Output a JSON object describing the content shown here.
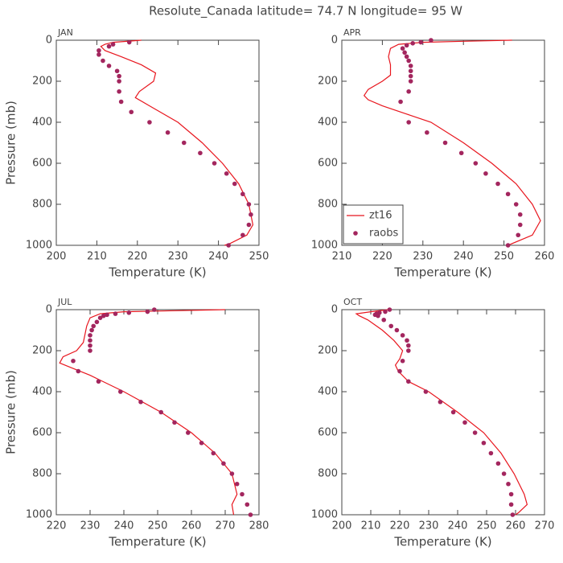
{
  "title": "Resolute_Canada  latitude= 74.7 N longitude= 95 W",
  "chart_data": [
    {
      "type": "line",
      "title": "JAN",
      "xlabel": "Temperature (K)",
      "ylabel": "Pressure (mb)",
      "xlim": [
        200,
        250
      ],
      "xticks": [
        200,
        210,
        220,
        230,
        240,
        250
      ],
      "ylim": [
        1000,
        0
      ],
      "yticks": [
        0,
        200,
        400,
        600,
        800,
        1000
      ],
      "series": [
        {
          "type": "line",
          "color": "#e8161e",
          "x": [
            221,
            214,
            212,
            211,
            212,
            216,
            221,
            224.5,
            224,
            220.5,
            219.5,
            223,
            230,
            236,
            241,
            245,
            247.5,
            248.5,
            247,
            243,
            241.5
          ],
          "y": [
            0,
            10,
            20,
            30,
            50,
            80,
            120,
            160,
            200,
            250,
            280,
            320,
            400,
            500,
            600,
            700,
            800,
            900,
            950,
            990,
            1000
          ]
        },
        {
          "type": "scatter",
          "color": "#a3265e",
          "x": [
            218,
            214,
            213,
            210.5,
            210.5,
            211.5,
            213,
            215,
            215.5,
            215.5,
            215.5,
            216,
            218.5,
            223,
            227.5,
            231.5,
            235.5,
            239,
            242,
            244,
            246,
            247.5,
            248,
            247.5,
            246,
            242.5
          ],
          "y": [
            10,
            20,
            30,
            50,
            70,
            100,
            125,
            150,
            175,
            200,
            250,
            300,
            350,
            400,
            450,
            500,
            550,
            600,
            650,
            700,
            750,
            800,
            850,
            900,
            950,
            1000
          ]
        }
      ]
    },
    {
      "type": "line",
      "title": "APR",
      "xlabel": "Temperature (K)",
      "xlim": [
        210,
        260
      ],
      "xticks": [
        210,
        220,
        230,
        240,
        250,
        260
      ],
      "ylim": [
        1000,
        0
      ],
      "yticks": [
        0,
        200,
        400,
        600,
        800,
        1000
      ],
      "legend": "lower left",
      "series": [
        {
          "type": "line",
          "name": "zt16",
          "color": "#e8161e",
          "x": [
            252,
            240,
            230,
            224,
            222,
            221.5,
            222,
            222,
            220,
            216.5,
            215.5,
            216.5,
            220,
            226,
            232,
            240,
            247,
            253,
            257,
            259,
            257,
            251
          ],
          "y": [
            0,
            5,
            10,
            20,
            40,
            80,
            120,
            170,
            200,
            240,
            270,
            290,
            320,
            360,
            400,
            500,
            600,
            700,
            800,
            880,
            950,
            1000
          ]
        },
        {
          "type": "scatter",
          "name": "raobs",
          "color": "#a3265e",
          "x": [
            232,
            229.5,
            227.5,
            226,
            225,
            225.5,
            226,
            226.5,
            227,
            227,
            227,
            227,
            226.5,
            224.5,
            226.5,
            231,
            235.5,
            239.5,
            243,
            245.5,
            248.5,
            251,
            253,
            254,
            254,
            253.5,
            251
          ],
          "y": [
            0,
            10,
            15,
            25,
            40,
            60,
            80,
            100,
            125,
            150,
            175,
            200,
            250,
            300,
            400,
            450,
            500,
            550,
            600,
            650,
            700,
            750,
            800,
            850,
            900,
            950,
            1000
          ]
        }
      ]
    },
    {
      "type": "line",
      "title": "JUL",
      "xlabel": "Temperature (K)",
      "ylabel": "Pressure (mb)",
      "xlim": [
        220,
        280
      ],
      "xticks": [
        220,
        230,
        240,
        250,
        260,
        270,
        280
      ],
      "ylim": [
        1000,
        0
      ],
      "yticks": [
        0,
        200,
        400,
        600,
        800,
        1000
      ],
      "series": [
        {
          "type": "line",
          "color": "#e8161e",
          "x": [
            270,
            255,
            240,
            233,
            230,
            229,
            228.5,
            228,
            226,
            222,
            221,
            224,
            230,
            240,
            251,
            260,
            267,
            272,
            273.5,
            272,
            272.5
          ],
          "y": [
            0,
            5,
            10,
            20,
            40,
            80,
            120,
            160,
            200,
            230,
            260,
            280,
            320,
            400,
            500,
            600,
            700,
            800,
            900,
            950,
            1000
          ]
        },
        {
          "type": "scatter",
          "color": "#a3265e",
          "x": [
            249,
            247,
            241.5,
            237.5,
            235,
            234,
            233,
            232,
            231,
            230.5,
            230,
            230,
            230,
            230,
            225,
            226.5,
            232.5,
            239,
            245,
            251,
            255,
            259,
            263,
            266.5,
            269.5,
            272,
            273.5,
            275,
            276.5,
            277.5
          ],
          "y": [
            0,
            10,
            15,
            20,
            25,
            30,
            40,
            60,
            80,
            100,
            125,
            150,
            175,
            200,
            250,
            300,
            350,
            400,
            450,
            500,
            550,
            600,
            650,
            700,
            750,
            800,
            850,
            900,
            950,
            1000
          ]
        }
      ]
    },
    {
      "type": "line",
      "title": "OCT",
      "xlabel": "Temperature (K)",
      "xlim": [
        200,
        270
      ],
      "xticks": [
        200,
        210,
        220,
        230,
        240,
        250,
        260,
        270
      ],
      "ylim": [
        1000,
        0
      ],
      "yticks": [
        0,
        200,
        400,
        600,
        800,
        1000
      ],
      "series": [
        {
          "type": "line",
          "color": "#e8161e",
          "x": [
            216,
            210,
            205,
            206,
            209,
            214,
            218,
            221,
            220,
            218.5,
            219.5,
            223,
            230,
            240,
            249,
            255,
            259.5,
            263,
            264,
            261,
            260
          ],
          "y": [
            0,
            10,
            20,
            30,
            50,
            100,
            150,
            200,
            240,
            270,
            300,
            350,
            400,
            500,
            600,
            700,
            800,
            900,
            950,
            990,
            1000
          ]
        },
        {
          "type": "scatter",
          "color": "#a3265e",
          "x": [
            216.5,
            215,
            213,
            212,
            211.5,
            212.5,
            214.5,
            217,
            219,
            221,
            222.5,
            223,
            223,
            221,
            220,
            223,
            229,
            234,
            238.5,
            242.5,
            246,
            249,
            251.5,
            254,
            256,
            257.5,
            258.5,
            258.5,
            259
          ],
          "y": [
            0,
            10,
            15,
            20,
            25,
            30,
            50,
            80,
            100,
            125,
            150,
            175,
            200,
            250,
            300,
            350,
            400,
            450,
            500,
            550,
            600,
            650,
            700,
            750,
            800,
            850,
            900,
            950,
            1000
          ]
        }
      ]
    }
  ]
}
